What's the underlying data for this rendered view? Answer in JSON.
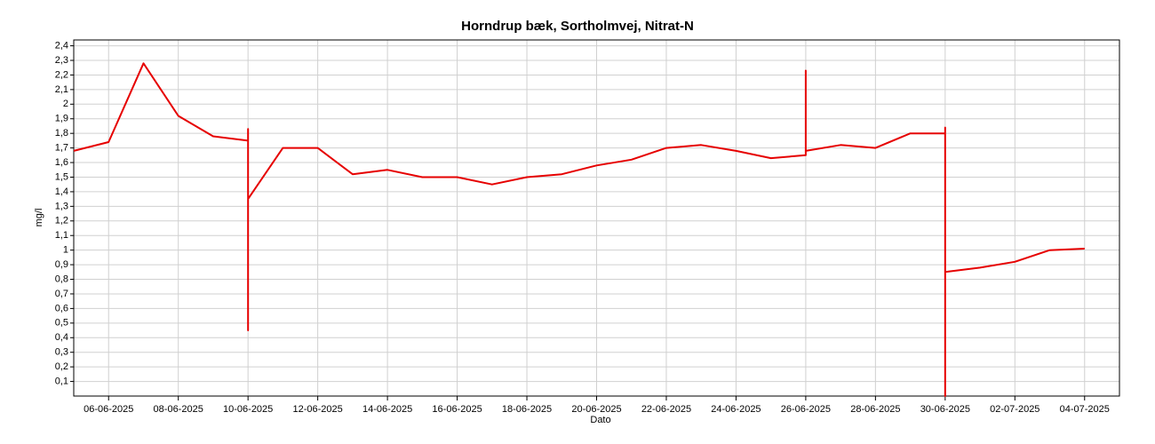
{
  "chart_data": {
    "type": "line",
    "title": "Horndrup bæk, Sortholmvej, Nitrat-N",
    "x_label": "Dato",
    "y_label": "mg/l",
    "color": "#e60000",
    "grid": true,
    "x": [
      "05-06-2025",
      "06-06-2025",
      "07-06-2025",
      "08-06-2025",
      "09-06-2025",
      "10-06-2025",
      "10-06-2025",
      "10-06-2025",
      "10-06-2025",
      "11-06-2025",
      "12-06-2025",
      "13-06-2025",
      "14-06-2025",
      "15-06-2025",
      "16-06-2025",
      "17-06-2025",
      "18-06-2025",
      "19-06-2025",
      "20-06-2025",
      "21-06-2025",
      "22-06-2025",
      "23-06-2025",
      "24-06-2025",
      "25-06-2025",
      "26-06-2025",
      "26-06-2025",
      "26-06-2025",
      "27-06-2025",
      "28-06-2025",
      "29-06-2025",
      "30-06-2025",
      "30-06-2025",
      "30-06-2025",
      "30-06-2025",
      "01-07-2025",
      "02-07-2025",
      "03-07-2025",
      "04-07-2025"
    ],
    "values": [
      1.68,
      1.74,
      2.28,
      1.92,
      1.78,
      1.75,
      1.83,
      0.45,
      1.35,
      1.7,
      1.7,
      1.52,
      1.55,
      1.5,
      1.5,
      1.45,
      1.5,
      1.52,
      1.58,
      1.62,
      1.7,
      1.72,
      1.68,
      1.63,
      1.65,
      2.23,
      1.68,
      1.72,
      1.7,
      1.8,
      1.8,
      1.84,
      0,
      0.85,
      0.88,
      0.92,
      1.0,
      1.01
    ],
    "xlim": [
      "05-06-2025",
      "05-07-2025"
    ],
    "xticks": [
      "06-06-2025",
      "08-06-2025",
      "10-06-2025",
      "12-06-2025",
      "14-06-2025",
      "16-06-2025",
      "18-06-2025",
      "20-06-2025",
      "22-06-2025",
      "24-06-2025",
      "26-06-2025",
      "28-06-2025",
      "30-06-2025",
      "02-07-2025",
      "04-07-2025"
    ],
    "ylim": [
      0,
      2.44
    ],
    "yticks": [
      {
        "value": 0.1,
        "label": "0,1"
      },
      {
        "value": 0.2,
        "label": "0,2"
      },
      {
        "value": 0.3,
        "label": "0,3"
      },
      {
        "value": 0.4,
        "label": "0,4"
      },
      {
        "value": 0.5,
        "label": "0,5"
      },
      {
        "value": 0.6,
        "label": "0,6"
      },
      {
        "value": 0.7,
        "label": "0,7"
      },
      {
        "value": 0.8,
        "label": "0,8"
      },
      {
        "value": 0.9,
        "label": "0,9"
      },
      1,
      {
        "value": 1.1,
        "label": "1,1"
      },
      {
        "value": 1.2,
        "label": "1,2"
      },
      {
        "value": 1.3,
        "label": "1,3"
      },
      {
        "value": 1.4,
        "label": "1,4"
      },
      {
        "value": 1.5,
        "label": "1,5"
      },
      {
        "value": 1.6,
        "label": "1,6"
      },
      {
        "value": 1.7,
        "label": "1,7"
      },
      {
        "value": 1.8,
        "label": "1,8"
      },
      {
        "value": 1.9,
        "label": "1,9"
      },
      2,
      {
        "value": 2.1,
        "label": "2,1"
      },
      {
        "value": 2.2,
        "label": "2,2"
      },
      {
        "value": 2.3,
        "label": "2,3"
      },
      {
        "value": 2.4,
        "label": "2,4"
      }
    ]
  }
}
